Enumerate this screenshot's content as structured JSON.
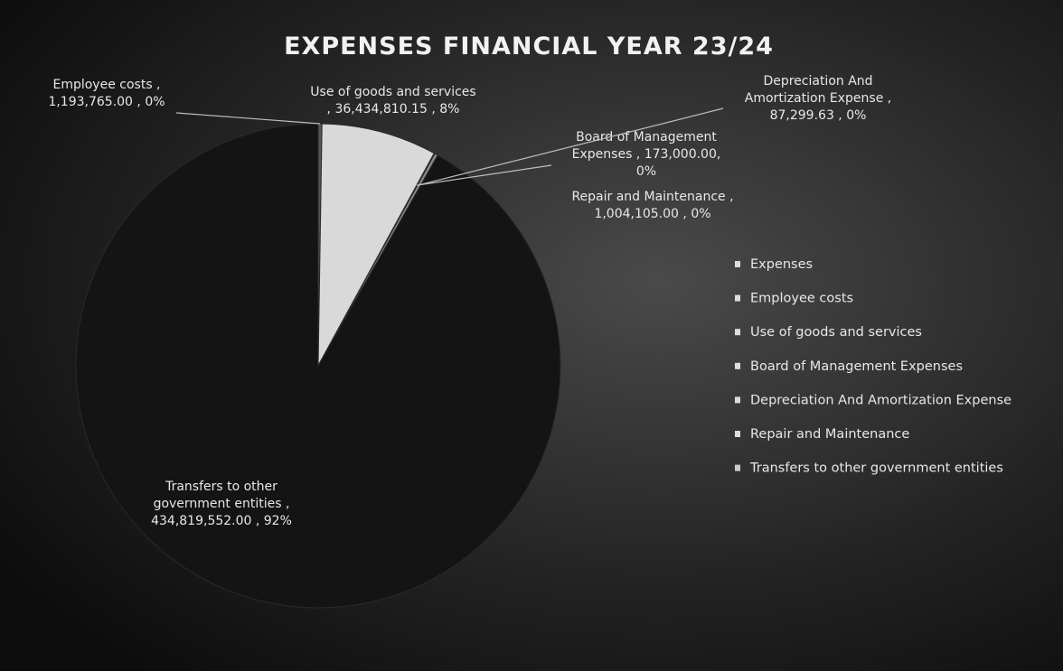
{
  "chart_data": {
    "type": "pie",
    "title": "EXPENSES FINANCIAL YEAR 23/24",
    "categories": [
      "Expenses",
      "Employee costs",
      "Use of goods and services",
      "Board of Management Expenses",
      "Depreciation And Amortization Expense",
      "Repair and Maintenance",
      "Transfers to other government entities"
    ],
    "values": [
      null,
      1193765.0,
      36434810.15,
      173000.0,
      87299.63,
      1004105.0,
      434819552.0
    ],
    "value_labels": [
      null,
      [
        "Employee costs ,",
        "1,193,765.00 , 0%"
      ],
      [
        "Use of goods and services",
        ", 36,434,810.15 , 8%"
      ],
      [
        "Board of Management",
        "Expenses , 173,000.00,",
        "0%"
      ],
      [
        "Depreciation And",
        "Amortization Expense ,",
        "87,299.63 , 0%"
      ],
      [
        "Repair and Maintenance ,",
        "1,004,105.00 , 0%"
      ],
      [
        "Transfers to other",
        "government entities ,",
        "434,819,552.00 , 92%"
      ]
    ],
    "colors": [
      "#3a3a3a",
      "#555555",
      "#d9d9d9",
      "#6a6a6a",
      "#7a7a7a",
      "#8a8a8a",
      "#141414"
    ],
    "legend": "right"
  }
}
